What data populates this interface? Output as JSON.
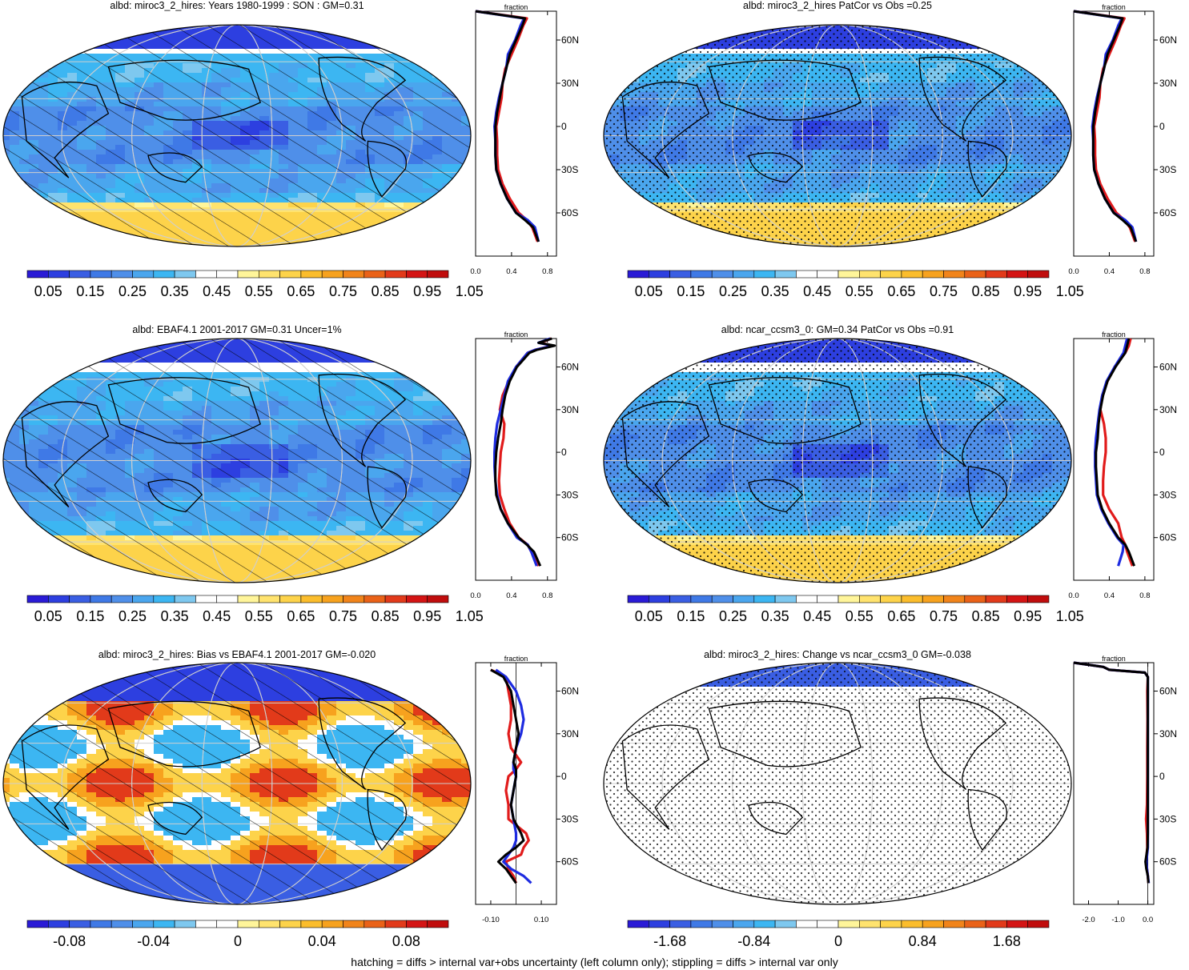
{
  "footer": "hatching = diffs > internal var+obs uncertainty (left column only); stippling = diffs > internal var only",
  "palette": {
    "full": [
      "#2a1bd6",
      "#2d3fe0",
      "#3a5ee3",
      "#3f79e6",
      "#4f8fe9",
      "#4aa6ee",
      "#3cb6f2",
      "#7ec8ef",
      "#ffffff",
      "#ffffff",
      "#fff59a",
      "#ffe36e",
      "#fdd34a",
      "#fbbd2c",
      "#f7a21e",
      "#f1841a",
      "#ea6218",
      "#e23a1a",
      "#d41414",
      "#c00d0d"
    ],
    "spine_model": "#000000",
    "spine_obs": "#e11b1b",
    "spine_alt": "#1d2be0",
    "map_grid": "#cfcfcf",
    "coast": "#000000"
  },
  "lat_ticks": [
    "60N",
    "30N",
    "0",
    "30S",
    "60S"
  ],
  "spine_axis_title": "fraction",
  "panels": [
    {
      "id": "model",
      "title": "albd: miroc3_2_hires: Years 1980-1999 : SON : GM=0.31",
      "map_type": "climatology",
      "pattern": "hatch",
      "colorbar_labels": [
        "0.05",
        "0.15",
        "0.25",
        "0.35",
        "0.45",
        "0.55",
        "0.65",
        "0.75",
        "0.85",
        "0.95",
        "1.05"
      ],
      "zonal_ticks": [
        "0.0",
        "0.4",
        "0.8"
      ],
      "chart_data": {
        "type": "line",
        "xlim": [
          0.0,
          0.9
        ],
        "ylim": [
          -90,
          80
        ],
        "lat": [
          80,
          75,
          70,
          60,
          50,
          40,
          30,
          20,
          10,
          0,
          -10,
          -20,
          -30,
          -40,
          -50,
          -60,
          -65,
          -70,
          -80
        ],
        "series": [
          {
            "name": "",
            "color": "black",
            "values": [
              0.0,
              0.55,
              0.52,
              0.45,
              0.38,
              0.34,
              0.3,
              0.27,
              0.24,
              0.22,
              0.22,
              0.22,
              0.23,
              0.28,
              0.35,
              0.45,
              0.55,
              0.64,
              0.7
            ]
          },
          {
            "name": "",
            "color": "red",
            "values": [
              0.0,
              0.57,
              0.53,
              0.47,
              0.4,
              0.33,
              0.3,
              0.29,
              0.26,
              0.23,
              0.24,
              0.24,
              0.25,
              0.3,
              0.38,
              0.48,
              0.57,
              0.63,
              0.69
            ]
          },
          {
            "name": "",
            "color": "blue",
            "values": [
              0.0,
              0.54,
              0.5,
              0.44,
              0.36,
              0.34,
              0.3,
              0.26,
              0.23,
              0.21,
              0.22,
              0.22,
              0.23,
              0.28,
              0.35,
              0.45,
              0.58,
              0.66,
              0.7
            ]
          }
        ]
      }
    },
    {
      "id": "patcor1",
      "title": "albd: miroc3_2_hires PatCor vs Obs =0.25",
      "map_type": "climatology",
      "pattern": "stipple",
      "colorbar_labels": [
        "0.05",
        "0.15",
        "0.25",
        "0.35",
        "0.45",
        "0.55",
        "0.65",
        "0.75",
        "0.85",
        "0.95",
        "1.05"
      ],
      "zonal_ticks": [
        "0.0",
        "0.4",
        "0.8"
      ],
      "chart_data": {
        "type": "line",
        "xlim": [
          0.0,
          0.9
        ],
        "ylim": [
          -90,
          80
        ],
        "lat": [
          80,
          75,
          70,
          60,
          50,
          40,
          30,
          20,
          10,
          0,
          -10,
          -20,
          -30,
          -40,
          -50,
          -60,
          -65,
          -70,
          -80
        ],
        "series": [
          {
            "name": "",
            "color": "black",
            "values": [
              0.0,
              0.55,
              0.52,
              0.45,
              0.38,
              0.34,
              0.3,
              0.27,
              0.24,
              0.22,
              0.22,
              0.22,
              0.23,
              0.28,
              0.35,
              0.45,
              0.55,
              0.64,
              0.7
            ]
          },
          {
            "name": "",
            "color": "red",
            "values": [
              0.0,
              0.57,
              0.53,
              0.47,
              0.4,
              0.33,
              0.3,
              0.29,
              0.26,
              0.23,
              0.24,
              0.24,
              0.25,
              0.3,
              0.38,
              0.48,
              0.57,
              0.63,
              0.69
            ]
          },
          {
            "name": "",
            "color": "blue",
            "values": [
              0.0,
              0.54,
              0.5,
              0.44,
              0.36,
              0.34,
              0.3,
              0.26,
              0.23,
              0.21,
              0.22,
              0.22,
              0.23,
              0.28,
              0.35,
              0.45,
              0.58,
              0.66,
              0.7
            ]
          }
        ]
      }
    },
    {
      "id": "obs",
      "title": "albd: EBAF4.1 2001-2017 GM=0.31 Uncer=1%",
      "map_type": "climatology",
      "pattern": "hatch",
      "colorbar_labels": [
        "0.05",
        "0.15",
        "0.25",
        "0.35",
        "0.45",
        "0.55",
        "0.65",
        "0.75",
        "0.85",
        "0.95",
        "1.05"
      ],
      "zonal_ticks": [
        "0.0",
        "0.4",
        "0.8"
      ],
      "chart_data": {
        "type": "line",
        "xlim": [
          0.0,
          0.9
        ],
        "ylim": [
          -90,
          80
        ],
        "lat": [
          80,
          77,
          75,
          72,
          70,
          60,
          50,
          40,
          30,
          20,
          10,
          0,
          -10,
          -20,
          -30,
          -40,
          -50,
          -60,
          -65,
          -70,
          -80
        ],
        "series": [
          {
            "name": "",
            "color": "black",
            "values": [
              0.85,
              0.7,
              0.88,
              0.68,
              0.6,
              0.46,
              0.38,
              0.33,
              0.3,
              0.28,
              0.25,
              0.23,
              0.22,
              0.22,
              0.23,
              0.28,
              0.36,
              0.48,
              0.57,
              0.65,
              0.72
            ]
          },
          {
            "name": "",
            "color": "red",
            "values": [
              0.84,
              0.72,
              0.86,
              0.66,
              0.58,
              0.45,
              0.37,
              0.3,
              0.27,
              0.32,
              0.31,
              0.28,
              0.27,
              0.26,
              0.27,
              0.32,
              0.38,
              0.48,
              0.58,
              0.62,
              0.7
            ]
          },
          {
            "name": "",
            "color": "blue",
            "values": [
              0.83,
              0.7,
              0.86,
              0.66,
              0.58,
              0.45,
              0.36,
              0.32,
              0.28,
              0.24,
              0.22,
              0.21,
              0.21,
              0.22,
              0.24,
              0.28,
              0.36,
              0.46,
              0.58,
              0.62,
              0.68
            ]
          }
        ]
      }
    },
    {
      "id": "patcor2",
      "title": "albd: ncar_ccsm3_0: GM=0.34 PatCor vs Obs =0.91",
      "map_type": "climatology_alt",
      "pattern": "stipple",
      "colorbar_labels": [
        "0.05",
        "0.15",
        "0.25",
        "0.35",
        "0.45",
        "0.55",
        "0.65",
        "0.75",
        "0.85",
        "0.95",
        "1.05"
      ],
      "zonal_ticks": [
        "0.0",
        "0.4",
        "0.8"
      ],
      "chart_data": {
        "type": "line",
        "xlim": [
          0.0,
          0.9
        ],
        "ylim": [
          -90,
          80
        ],
        "lat": [
          80,
          75,
          70,
          60,
          50,
          40,
          30,
          20,
          10,
          0,
          -10,
          -20,
          -30,
          -40,
          -50,
          -60,
          -65,
          -70,
          -80
        ],
        "series": [
          {
            "name": "",
            "color": "black",
            "values": [
              0.62,
              0.6,
              0.58,
              0.47,
              0.38,
              0.33,
              0.3,
              0.28,
              0.27,
              0.25,
              0.25,
              0.26,
              0.27,
              0.32,
              0.4,
              0.5,
              0.58,
              0.62,
              0.68
            ]
          },
          {
            "name": "",
            "color": "red",
            "values": [
              0.64,
              0.62,
              0.58,
              0.46,
              0.38,
              0.32,
              0.3,
              0.34,
              0.36,
              0.36,
              0.34,
              0.33,
              0.33,
              0.4,
              0.5,
              0.54,
              0.58,
              0.6,
              0.66
            ]
          },
          {
            "name": "",
            "color": "blue",
            "values": [
              0.6,
              0.58,
              0.56,
              0.46,
              0.37,
              0.32,
              0.29,
              0.27,
              0.25,
              0.24,
              0.24,
              0.25,
              0.26,
              0.31,
              0.39,
              0.49,
              0.56,
              0.55,
              0.5
            ]
          }
        ]
      }
    },
    {
      "id": "bias",
      "title": "albd: miroc3_2_hires: Bias vs EBAF4.1 2001-2017  GM=-0.020",
      "map_type": "bias",
      "pattern": "hatch",
      "colorbar_labels": [
        "-0.08",
        "-0.04",
        "0",
        "0.04",
        "0.08"
      ],
      "zonal_ticks": [
        "-0.10",
        "0.10"
      ],
      "chart_data": {
        "type": "line",
        "xlim": [
          -0.16,
          0.16
        ],
        "ylim": [
          -90,
          80
        ],
        "lat": [
          75,
          70,
          60,
          50,
          40,
          30,
          20,
          10,
          5,
          0,
          -10,
          -20,
          -30,
          -40,
          -45,
          -50,
          -55,
          -60,
          -65,
          -70,
          -75
        ],
        "series": [
          {
            "name": "",
            "color": "black",
            "values": [
              -0.1,
              -0.05,
              -0.02,
              -0.01,
              0.0,
              0.01,
              0.0,
              -0.01,
              0.0,
              0.0,
              -0.01,
              -0.02,
              -0.01,
              0.02,
              0.03,
              0.0,
              -0.04,
              -0.07,
              -0.04,
              -0.02,
              0.0
            ]
          },
          {
            "name": "",
            "color": "red",
            "values": [
              -0.1,
              -0.04,
              -0.03,
              -0.02,
              -0.02,
              -0.03,
              -0.02,
              0.02,
              0.0,
              -0.03,
              -0.04,
              -0.03,
              -0.03,
              0.04,
              0.05,
              0.03,
              0.02,
              -0.04,
              -0.03,
              -0.01,
              0.0
            ]
          },
          {
            "name": "",
            "color": "blue",
            "values": [
              -0.08,
              -0.04,
              0.0,
              0.02,
              0.03,
              0.02,
              0.0,
              -0.01,
              -0.01,
              0.0,
              -0.01,
              -0.02,
              -0.01,
              0.0,
              0.0,
              -0.01,
              -0.03,
              -0.05,
              -0.02,
              0.03,
              0.06
            ]
          }
        ]
      }
    },
    {
      "id": "change",
      "title": "albd: miroc3_2_hires: Change vs ncar_ccsm3_0 GM=-0.038",
      "map_type": "change",
      "pattern": "stipple",
      "colorbar_labels": [
        "-1.68",
        "-0.84",
        "0",
        "0.84",
        "1.68"
      ],
      "zonal_ticks": [
        "-2.0",
        "-1.0",
        "0.0"
      ],
      "chart_data": {
        "type": "line",
        "xlim": [
          -2.5,
          0.2
        ],
        "ylim": [
          -90,
          80
        ],
        "lat": [
          80,
          77,
          75,
          73,
          70,
          60,
          40,
          20,
          0,
          -20,
          -30,
          -40,
          -50,
          -60,
          -65,
          -70,
          -75
        ],
        "series": [
          {
            "name": "",
            "color": "black",
            "values": [
              -2.5,
              -1.5,
              -1.3,
              -0.1,
              0.0,
              0.0,
              0.0,
              0.0,
              0.0,
              0.0,
              0.0,
              0.0,
              -0.01,
              -0.08,
              -0.05,
              0.0,
              0.02
            ]
          },
          {
            "name": "",
            "color": "red",
            "values": [
              -2.5,
              -1.5,
              -1.3,
              -0.1,
              0.0,
              -0.02,
              -0.01,
              -0.02,
              -0.02,
              -0.03,
              -0.06,
              -0.03,
              -0.02,
              -0.06,
              -0.03,
              0.0,
              0.02
            ]
          },
          {
            "name": "",
            "color": "blue",
            "values": [
              -2.5,
              -1.5,
              -1.3,
              -0.1,
              0.0,
              0.0,
              0.0,
              0.0,
              0.0,
              0.0,
              0.0,
              0.0,
              0.0,
              -0.05,
              -0.03,
              0.0,
              0.03
            ]
          }
        ]
      }
    }
  ]
}
